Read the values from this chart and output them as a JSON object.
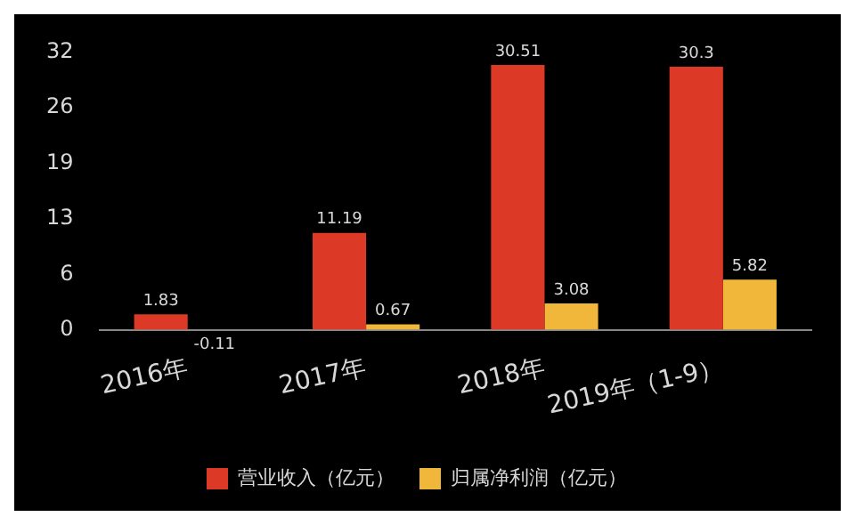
{
  "chart_data": {
    "type": "bar",
    "categories": [
      "2016年",
      "2017年",
      "2018年",
      "2019年（1-9）"
    ],
    "series": [
      {
        "name": "营业收入（亿元）",
        "color": "#dc3a26",
        "values": [
          1.83,
          11.19,
          30.51,
          30.3
        ]
      },
      {
        "name": "归属净利润（亿元）",
        "color": "#f0b73a",
        "values": [
          -0.11,
          0.67,
          3.08,
          5.82
        ]
      }
    ],
    "ylim": [
      -0.2,
      32
    ],
    "yticks": [
      0,
      {
        "value": 6.4,
        "label": "6"
      },
      {
        "value": 12.8,
        "label": "13"
      },
      {
        "value": 19.2,
        "label": "19"
      },
      {
        "value": 25.6,
        "label": "26"
      },
      32
    ],
    "data_labels": true,
    "grid": false,
    "legend": "bottom"
  }
}
